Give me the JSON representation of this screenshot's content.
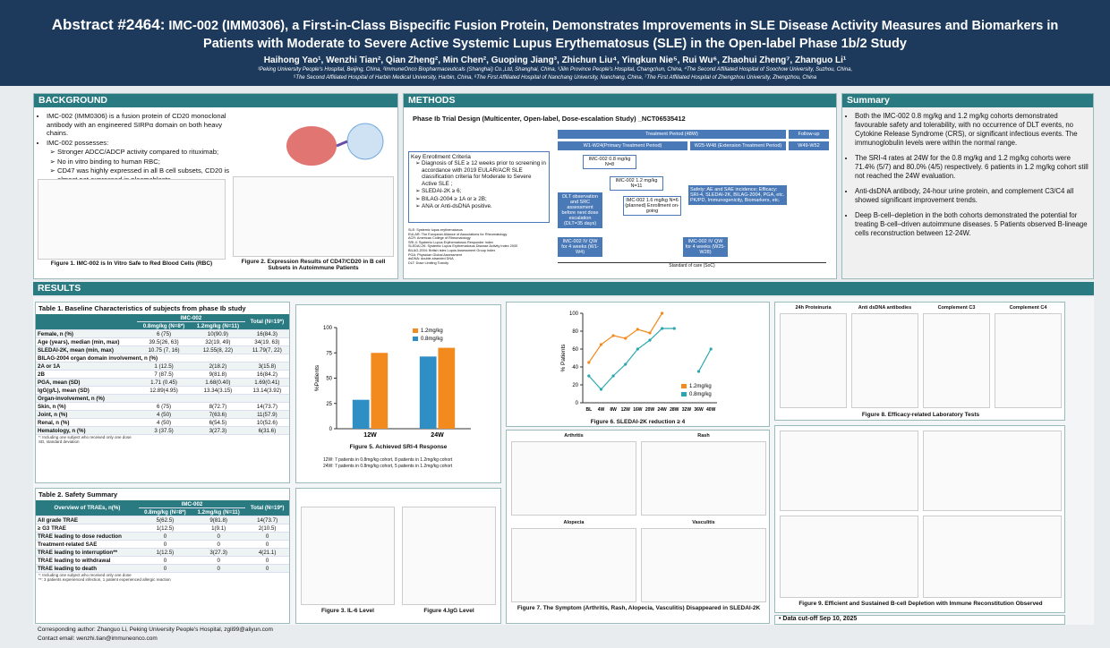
{
  "header": {
    "abstract_id": "Abstract #2464:",
    "title": "IMC-002 (IMM0306), a First-in-Class Bispecific Fusion Protein, Demonstrates Improvements in SLE Disease Activity Measures and Biomarkers in Patients with Moderate to Severe Active Systemic Lupus Erythematosus (SLE) in the Open-label Phase 1b/2 Study",
    "authors": "Haihong Yao¹, Wenzhi Tian², Qian Zheng², Min Chen², Guoping Jiang³, Zhichun Liu⁴, Yingkun Nie⁵, Rui Wu⁶, Zhaohui Zheng⁷, Zhanguo Li¹",
    "affiliations": [
      "¹Peking University People's Hospital, Beijing, China, ²ImmuneOnco Biopharmaceuticals (Shanghai) Co.,Ltd, Shanghai, China, ³Jilin Province People's Hospital, Changchun, China, ⁴The Second Affiliated Hospital of Soochow University, Suzhou, China,",
      "⁵The Second Affiliated Hospital of Harbin Medical University, Harbin, China, ⁶The First Affiliated Hospital of Nanchang University, Nanchang, China, ⁷The First Affiliated Hospital of Zhengzhou University, Zhengzhou, China"
    ]
  },
  "background": {
    "heading": "BACKGROUND",
    "bullets": [
      "IMC-002 (IMM0306) is a fusion protein of CD20 monoclonal antibody with an engineered SIRPα domain on both heavy chains.",
      "IMC-002 possesses:"
    ],
    "sub_bullets": [
      "Stronger ADCC/ADCP activity compared to rituximab;",
      "No in vitro binding to human RBC;",
      "CD47 was highly expressed in all B cell subsets, CD20 is almost not expressed in plasmablasts."
    ],
    "fig1_caption": "Figure 1. IMC-002 is In Vitro Safe to Red Blood Cells (RBC)",
    "fig2_caption": "Figure 2. Expression Results of CD47/CD20 in B cell Subsets in Autoimmune Patients"
  },
  "methods": {
    "heading": "METHODS",
    "design": "Phase Ib Trial Design (Multicenter, Open-label, Dose-escalation Study) _NCT06535412",
    "criteria_title": "Key Enrollment Criteria",
    "criteria": [
      "Diagnosis of SLE ≥ 12 weeks prior to screening in accordance with 2019 EULAR/ACR SLE classification criteria for Moderate to Severe Active SLE ;",
      "SLEDAI-2K ≥ 6;",
      "BILAG-2004 ≥ 1A or ≥ 2B;",
      "ANA or Anti-dsDNA positive."
    ],
    "abbreviations": [
      "SLE: Systemic lupus erythematosus",
      "EULAR: The European Alliance of Associations for Rheumatology",
      "ACR: American College of Rheumatology",
      "SRI-4: Systemic Lupus Erythematosus Responder Index",
      "SLEDAI-2K: Systemic Lupus Erythematosus Disease Activity Index 2000",
      "BILAG-2004: British Isles Lupus Assessment Group Index",
      "PGA: Physician Global Assessment",
      "dsDNA: double-stranded DNA",
      "DLT: Dose Limiting Toxicity"
    ],
    "diagram": {
      "treatment": "Treatment Period (48W)",
      "followup": "Follow-up",
      "primary": "W1-W24(Primary Treatment Period)",
      "extension": "W25-W48 (Extension Treatment Period)",
      "fu_weeks": "W49-W52",
      "dose1": "IMC-002 0.8 mg/kg N=8",
      "dose2": "IMC-002 1.2 mg/kg N=11",
      "dose3": "IMC-002 1.6 mg/kg N=6 (planned) Enrollment on-going",
      "dlt": "DLT observation and SRC assessment before next dose escalation (DLT=35 days)",
      "endpoints": "Safety: AE and SAE incidence; Efficacy: SRI-4, SLEDAI-2K, BILAG-2004, PGA, etc. PK/PD, Immunogenicity, Biomarkers, etc.",
      "iv1": "IMC-002 IV QW for 4 weeks (W1-W4)",
      "iv2": "IMC-002 IV QW for 4 weeks (W25-W28)",
      "soc": "Standard of care (SoC)"
    }
  },
  "summary": {
    "heading": "Summary",
    "bullets": [
      "Both the IMC-002 0.8 mg/kg and 1.2 mg/kg cohorts demonstrated favourable safety and tolerability, with no occurrence of DLT events, no Cytokine Release Syndrome (CRS), or significant infectious events. The immunoglobulin levels were within the normal range.",
      "The SRI-4 rates at 24W for the 0.8 mg/kg and 1.2 mg/kg cohorts were 71.4% (5/7) and 80.0% (4/5) respectively. 6 patients in 1.2 mg/kg cohort still not reached the 24W evaluation.",
      "Anti-dsDNA antibody, 24-hour urine protein, and complement C3/C4 all showed significant improvement trends.",
      "Deep B-cell–depletion in the both cohorts  demonstrated the potential for treating B-cell–driven  autoimmune diseases. 5 Patients observed B-lineage cells reconstruction between 12-24W."
    ]
  },
  "results": {
    "heading": "RESULTS",
    "table1": {
      "title": "Table 1. Baseline Characteristics of subjects from phase Ib study",
      "group": "IMC-002",
      "columns": [
        "0.8mg/kg (N=8*)",
        "1.2mg/kg (N=11)",
        "Total (N=19*)"
      ],
      "total": "Total",
      "rows": [
        [
          "Female, n (%)",
          "6 (75)",
          "10(90.9)",
          "16(84.3)"
        ],
        [
          "Age (years), median (min, max)",
          "39.5(26, 63)",
          "32(19, 49)",
          "34(19, 63)"
        ],
        [
          "SLEDAI-2K, mean (min, max)",
          "10.75 (7, 16)",
          "12.55(8, 22)",
          "11.79(7, 22)"
        ],
        [
          "BILAG-2004 organ domain involvement, n (%)"
        ],
        [
          "2A or 1A",
          "1 (12.5)",
          "2(18.2)",
          "3(15.8)"
        ],
        [
          "2B",
          "7 (87.5)",
          "9(81.8)",
          "16(84.2)"
        ],
        [
          "PGA, mean (SD)",
          "1.71 (0.45)",
          "1.68(0.40)",
          "1.69(0.41)"
        ],
        [
          "IgG(g/L), mean (SD)",
          "12.89(4.95)",
          "13.34(3.15)",
          "13.14(3.92)"
        ],
        [
          "Organ-involvement, n (%)"
        ],
        [
          "Skin, n (%)",
          "6 (75)",
          "8(72.7)",
          "14(73.7)"
        ],
        [
          "Joint, n (%)",
          "4 (50)",
          "7(63.6)",
          "11(57.9)"
        ],
        [
          "Renal, n (%)",
          "4 (50)",
          "6(54.5)",
          "10(52.6)"
        ],
        [
          "Hematology, n (%)",
          "3 (37.5)",
          "3(27.3)",
          "6(31.6)"
        ]
      ],
      "footnotes": [
        "*: Including one subject who received only one dose",
        "SD, standard deviation"
      ]
    },
    "table2": {
      "title": "Table 2. Safety Summary",
      "stub": "Overview of TRAEs, n(%)",
      "group": "IMC-002",
      "columns": [
        "0.8mg/kg (N=8*)",
        "1.2mg/kg (N=11)",
        "Total (N=19*)"
      ],
      "total": "Total",
      "rows": [
        [
          "All grade TRAE",
          "5(62.5)",
          "9(81.8)",
          "14(73.7)"
        ],
        [
          "≥ G3 TRAE",
          "1(12.5)",
          "1(9.1)",
          "2(10.5)"
        ],
        [
          "TRAE leading to dose reduction",
          "0",
          "0",
          "0"
        ],
        [
          "Treatment-related SAE",
          "0",
          "0",
          "0"
        ],
        [
          "TRAE leading to interruption**",
          "1(12.5)",
          "3(27.3)",
          "4(21.1)"
        ],
        [
          "TRAE leading to withdrawal",
          "0",
          "0",
          "0"
        ],
        [
          "TRAE leading to death",
          "0",
          "0",
          "0"
        ]
      ],
      "footnotes": [
        "*: Including one subject who received only one dose",
        "**: 3 patients experienced infection, 1 patient experienced allergic reaction"
      ]
    },
    "fig5": {
      "type": "bar",
      "caption": "Figure 5. Achieved SRI-4 Response",
      "y_label": "%Patients",
      "categories": [
        "12W",
        "24W"
      ],
      "series": [
        {
          "name": "1.2mg/kg",
          "color": "#f28a1e",
          "values": [
            75,
            80
          ]
        },
        {
          "name": "0.8mg/kg",
          "color": "#2f8fc4",
          "values": [
            28.6,
            71.4
          ]
        }
      ],
      "ylim": [
        0,
        100
      ],
      "yticks": [
        0,
        25,
        50,
        75,
        100
      ],
      "notes": [
        "12W:  7 patients in 0.8mg/kg cohort, 8 patients in 1.2mg/kg cohort",
        "24W:  7 patients in 0.8mg/kg cohort, 5 patients in 1.2mg/kg cohort"
      ]
    },
    "fig6": {
      "type": "line",
      "caption": "Figure 6. SLEDAI-2K reduction ≥ 4",
      "y_label": "% Patients",
      "categories": [
        "BL",
        "4W",
        "8W",
        "12W",
        "16W",
        "20W",
        "24W",
        "28W",
        "32W",
        "36W",
        "40W"
      ],
      "series": [
        {
          "name": "1.2mg/kg",
          "color": "#f28a1e",
          "values": [
            45,
            65,
            75,
            72,
            82,
            78,
            100,
            null,
            null,
            null,
            null
          ]
        },
        {
          "name": "0.8mg/kg",
          "color": "#2aa6b0",
          "values": [
            30,
            15,
            30,
            43,
            60,
            70,
            83,
            83,
            null,
            35,
            60
          ]
        }
      ],
      "ylim": [
        0,
        100
      ],
      "yticks": [
        0,
        20,
        40,
        60,
        80,
        100
      ]
    },
    "fig3_caption": "Figure 3. IL-6 Level",
    "fig4_caption": "Figure 4.IgG Level",
    "fig7": {
      "caption": "Figure 7. The Symptom (Arthritis, Rash, Alopecia, Vasculitis) Disappeared in SLEDAI-2K",
      "panels": [
        "Arthritis",
        "Rash",
        "Alopecia",
        "Vasculitis"
      ]
    },
    "fig8": {
      "caption": "Figure 8. Efficacy-related Laboratory Tests",
      "panels": [
        "24h Proteinuria",
        "Anti dsDNA antibodies",
        "Complement C3",
        "Complement C4"
      ]
    },
    "fig9": {
      "caption": "Figure 9. Efficient and Sustained B-cell Depletion with Immune Reconstitution Observed"
    },
    "cutoff": "Data cut-off Sep 10, 2025"
  },
  "footer": {
    "author": "Corresponding author: Zhanguo Li, Peking University People's Hospital, zgli99@aliyun.com",
    "contact": "Contact email: wenzhi.tian@immuneonco.com"
  }
}
